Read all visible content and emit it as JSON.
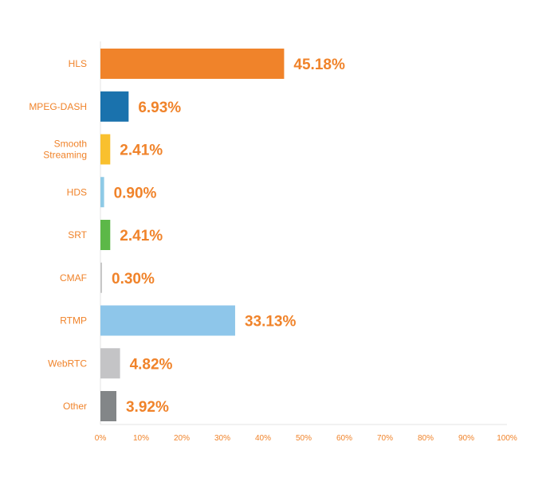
{
  "chart_data": {
    "type": "bar",
    "orientation": "horizontal",
    "categories": [
      [
        "HLS"
      ],
      [
        "MPEG-DASH"
      ],
      [
        "Smooth",
        "Streaming"
      ],
      [
        "HDS"
      ],
      [
        "SRT"
      ],
      [
        "CMAF"
      ],
      [
        "RTMP"
      ],
      [
        "WebRTC"
      ],
      [
        "Other"
      ]
    ],
    "values": [
      45.18,
      6.93,
      2.41,
      0.9,
      2.41,
      0.3,
      33.13,
      4.82,
      3.92
    ],
    "value_labels": [
      "45.18%",
      "6.93%",
      "2.41%",
      "0.90%",
      "2.41%",
      "0.30%",
      "33.13%",
      "4.82%",
      "3.92%"
    ],
    "bar_colors": [
      "#f0832a",
      "#1a72ad",
      "#f9c02e",
      "#8ecae6",
      "#5cb848",
      "#c8c8c8",
      "#8ec6ea",
      "#c4c4c6",
      "#838688"
    ],
    "xlim": [
      0,
      100
    ],
    "x_ticks": [
      0,
      10,
      20,
      30,
      40,
      50,
      60,
      70,
      80,
      90,
      100
    ],
    "x_tick_labels": [
      "0%",
      "10%",
      "20%",
      "30%",
      "40%",
      "50%",
      "60%",
      "70%",
      "80%",
      "90%",
      "100%"
    ],
    "title": "",
    "xlabel": "",
    "ylabel": "",
    "grid": false,
    "label_color": "#f0832a",
    "axis_color": "#e3e3e3"
  }
}
